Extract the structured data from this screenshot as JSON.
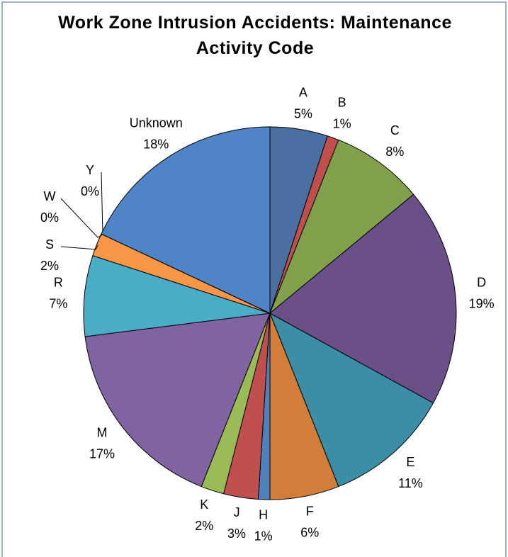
{
  "chart_data": {
    "type": "pie",
    "title": "Work Zone Intrusion Accidents: Maintenance Activity Code",
    "categories": [
      "A",
      "B",
      "C",
      "D",
      "E",
      "F",
      "H",
      "J",
      "K",
      "M",
      "R",
      "S",
      "W",
      "Y",
      "Unknown"
    ],
    "values": [
      5,
      1,
      8,
      19,
      11,
      6,
      1,
      3,
      2,
      17,
      7,
      2,
      0,
      0,
      18
    ],
    "value_labels": [
      "5%",
      "1%",
      "8%",
      "19%",
      "11%",
      "6%",
      "1%",
      "3%",
      "2%",
      "17%",
      "7%",
      "2%",
      "0%",
      "0%",
      "18%"
    ],
    "colors": [
      "#4a70a2",
      "#c0504d",
      "#80a04c",
      "#6a4f88",
      "#3c8ea6",
      "#d27e3a",
      "#4f81bd",
      "#c0504d",
      "#9bbb59",
      "#8064a2",
      "#4bacc6",
      "#f79646",
      "#b7c9e2",
      "#dba6a6",
      "#4f85c6"
    ]
  }
}
